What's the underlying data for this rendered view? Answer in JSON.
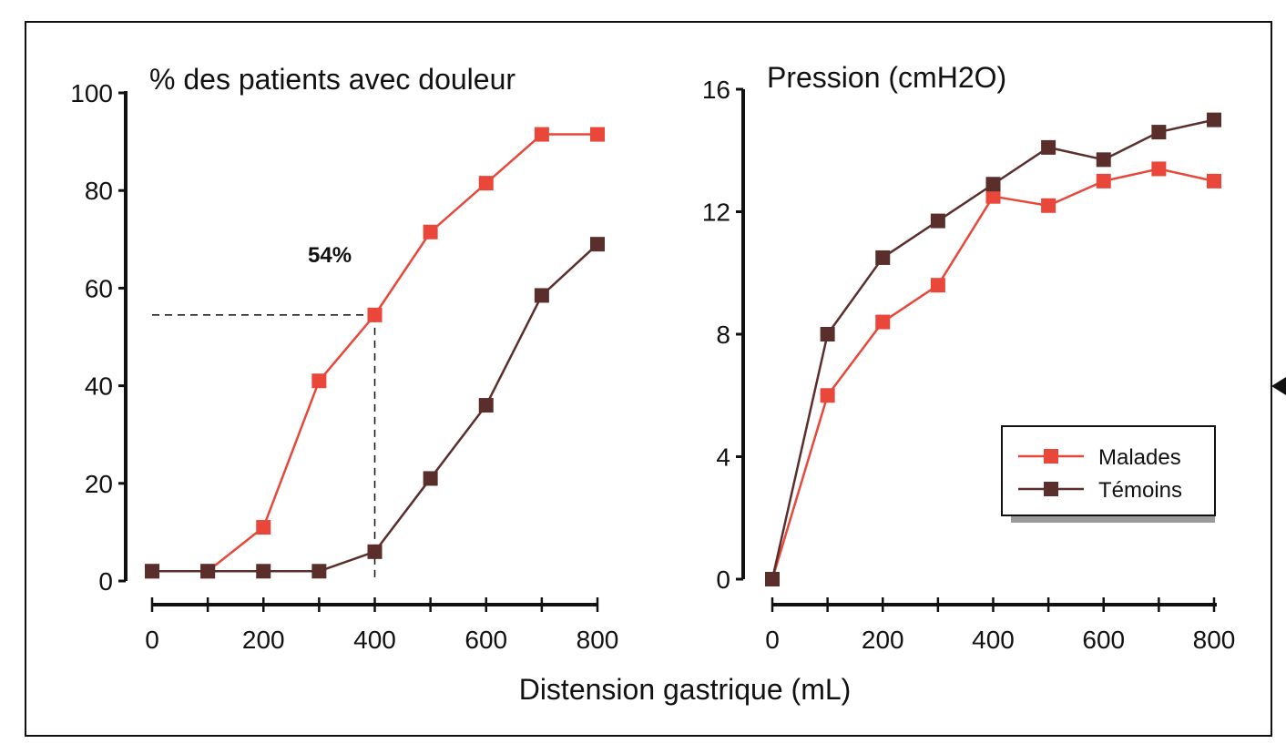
{
  "figure": {
    "xlabel": "Distension gastrique (mL)",
    "colors": {
      "malades": "#e8473a",
      "temoins": "#5a2f2b",
      "axis": "#111111",
      "frame": "#111111"
    }
  },
  "chart_data": [
    {
      "type": "line",
      "title": "% des patients avec douleur",
      "xlabel": "Distension gastrique (mL)",
      "ylabel": "% des patients avec douleur",
      "xlim": [
        0,
        800
      ],
      "ylim": [
        0,
        100
      ],
      "xticks": [
        "0",
        "200",
        "400",
        "600",
        "800"
      ],
      "yticks": [
        "0",
        "20",
        "40",
        "60",
        "80",
        "100"
      ],
      "x": [
        0,
        100,
        200,
        300,
        400,
        500,
        600,
        700,
        800
      ],
      "series": [
        {
          "name": "Malades",
          "color": "#e8473a",
          "values": [
            2,
            2,
            11,
            41,
            54.5,
            71.5,
            81.5,
            91.5,
            91.5
          ]
        },
        {
          "name": "Témoins",
          "color": "#5a2f2b",
          "values": [
            2,
            2,
            2,
            2,
            6,
            21,
            36,
            58.5,
            69
          ]
        }
      ],
      "annotation": {
        "text": "54%",
        "x": 400,
        "y": 54.5
      }
    },
    {
      "type": "line",
      "title": "Pression (cmH2O)",
      "xlabel": "Distension gastrique (mL)",
      "ylabel": "Pression (cmH2O)",
      "xlim": [
        0,
        800
      ],
      "ylim": [
        0,
        16
      ],
      "xticks": [
        "0",
        "200",
        "400",
        "600",
        "800"
      ],
      "yticks": [
        "0",
        "4",
        "8",
        "12",
        "16"
      ],
      "x": [
        0,
        100,
        200,
        300,
        400,
        500,
        600,
        700,
        800
      ],
      "series": [
        {
          "name": "Malades",
          "color": "#e8473a",
          "values": [
            0,
            6,
            8.4,
            9.6,
            12.5,
            12.2,
            13,
            13.4,
            13
          ]
        },
        {
          "name": "Témoins",
          "color": "#5a2f2b",
          "values": [
            0,
            8,
            10.5,
            11.7,
            12.9,
            14.1,
            13.7,
            14.6,
            15
          ]
        }
      ],
      "legend": {
        "placement": "bottom-right",
        "entries": [
          "Malades",
          "Témoins"
        ]
      }
    }
  ]
}
